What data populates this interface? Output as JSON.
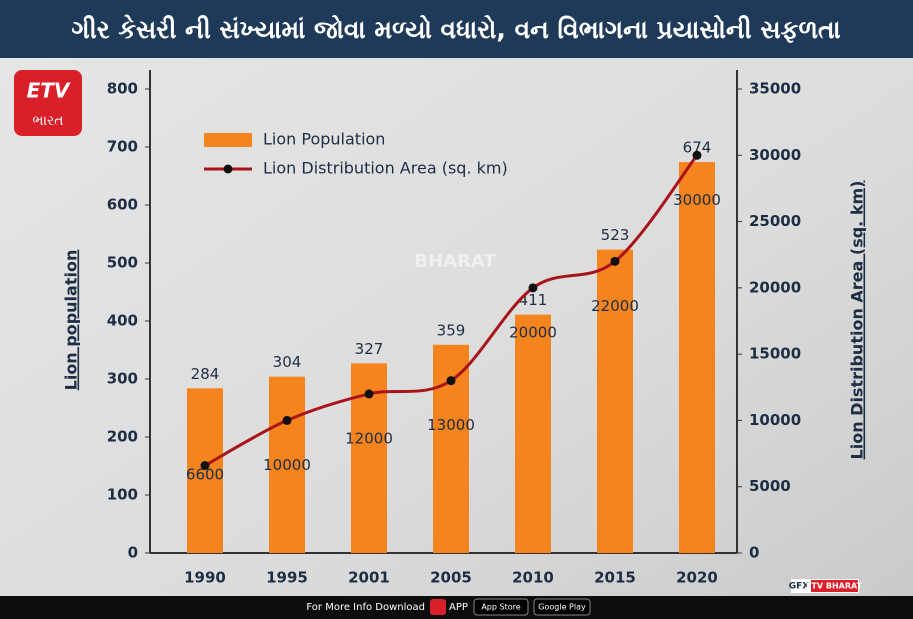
{
  "chart_data": {
    "type": "bar",
    "title": "ગીર કેસરી ની સંખ્યામાં જોવા મળ્યો વધારો, વન વિભાગના પ્રયાસોની સફળતા",
    "y_label": "Lion population",
    "y2_label": "Lion Distribution Area (sq. km)",
    "categories": [
      "1990",
      "1995",
      "2001",
      "2005",
      "2010",
      "2015",
      "2020"
    ],
    "series": [
      {
        "name": "Lion Population",
        "type": "bar",
        "color": "#f5841f",
        "values": [
          284,
          304,
          327,
          359,
          411,
          523,
          674
        ]
      },
      {
        "name": "Lion Distribution Area (sq. km)",
        "type": "line",
        "axis": "y2",
        "color": "#a8141a",
        "values": [
          6600,
          10000,
          12000,
          13000,
          20000,
          22000,
          30000
        ]
      }
    ],
    "ylim": [
      0,
      800
    ],
    "yticks": [
      0,
      100,
      200,
      300,
      400,
      500,
      600,
      700,
      800
    ],
    "y2lim": [
      0,
      35000
    ],
    "y2ticks": [
      0,
      5000,
      10000,
      15000,
      20000,
      25000,
      30000,
      35000
    ],
    "legend": "upper left"
  },
  "logo": {
    "brand": "ETV",
    "script": "ભારત"
  },
  "watermark": "BHARAT",
  "credit": {
    "gfx": "GFX",
    "brand": "ETV BHARAT"
  },
  "footer": {
    "text": "For More Info Download",
    "app": "APP",
    "app_store": "App Store",
    "google_play": "Google Play"
  }
}
